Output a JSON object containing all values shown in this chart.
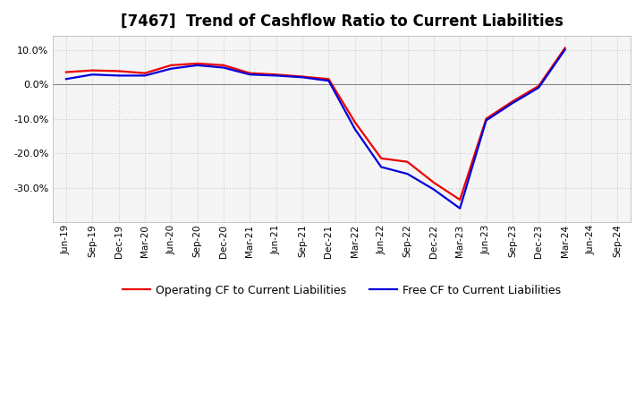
{
  "title": "[7467]  Trend of Cashflow Ratio to Current Liabilities",
  "x_labels": [
    "Jun-19",
    "Sep-19",
    "Dec-19",
    "Mar-20",
    "Jun-20",
    "Sep-20",
    "Dec-20",
    "Mar-21",
    "Jun-21",
    "Sep-21",
    "Dec-21",
    "Mar-22",
    "Jun-22",
    "Sep-22",
    "Dec-22",
    "Mar-23",
    "Jun-23",
    "Sep-23",
    "Dec-23",
    "Mar-24",
    "Jun-24",
    "Sep-24"
  ],
  "operating_cf": [
    3.5,
    4.0,
    3.8,
    3.2,
    5.5,
    6.0,
    5.5,
    3.2,
    2.8,
    2.2,
    1.5,
    -11.0,
    -21.5,
    -22.5,
    -28.5,
    -33.5,
    -10.0,
    -5.0,
    -0.5,
    10.5,
    null,
    null
  ],
  "free_cf": [
    1.5,
    2.8,
    2.5,
    2.5,
    4.5,
    5.5,
    4.8,
    2.8,
    2.5,
    2.0,
    1.0,
    -13.0,
    -24.0,
    -26.0,
    -30.5,
    -36.0,
    -10.5,
    -5.5,
    -1.0,
    10.0,
    null,
    null
  ],
  "ylim": [
    -40,
    14
  ],
  "yticks": [
    10.0,
    0.0,
    -10.0,
    -20.0,
    -30.0
  ],
  "operating_cf_color": "#ee0000",
  "free_cf_color": "#0000dd",
  "background_color": "#ffffff",
  "plot_bg_color": "#f5f5f5",
  "grid_color": "#cccccc",
  "zero_line_color": "#888888",
  "legend_operating": "Operating CF to Current Liabilities",
  "legend_free": "Free CF to Current Liabilities",
  "title_fontsize": 12,
  "line_width": 1.6
}
